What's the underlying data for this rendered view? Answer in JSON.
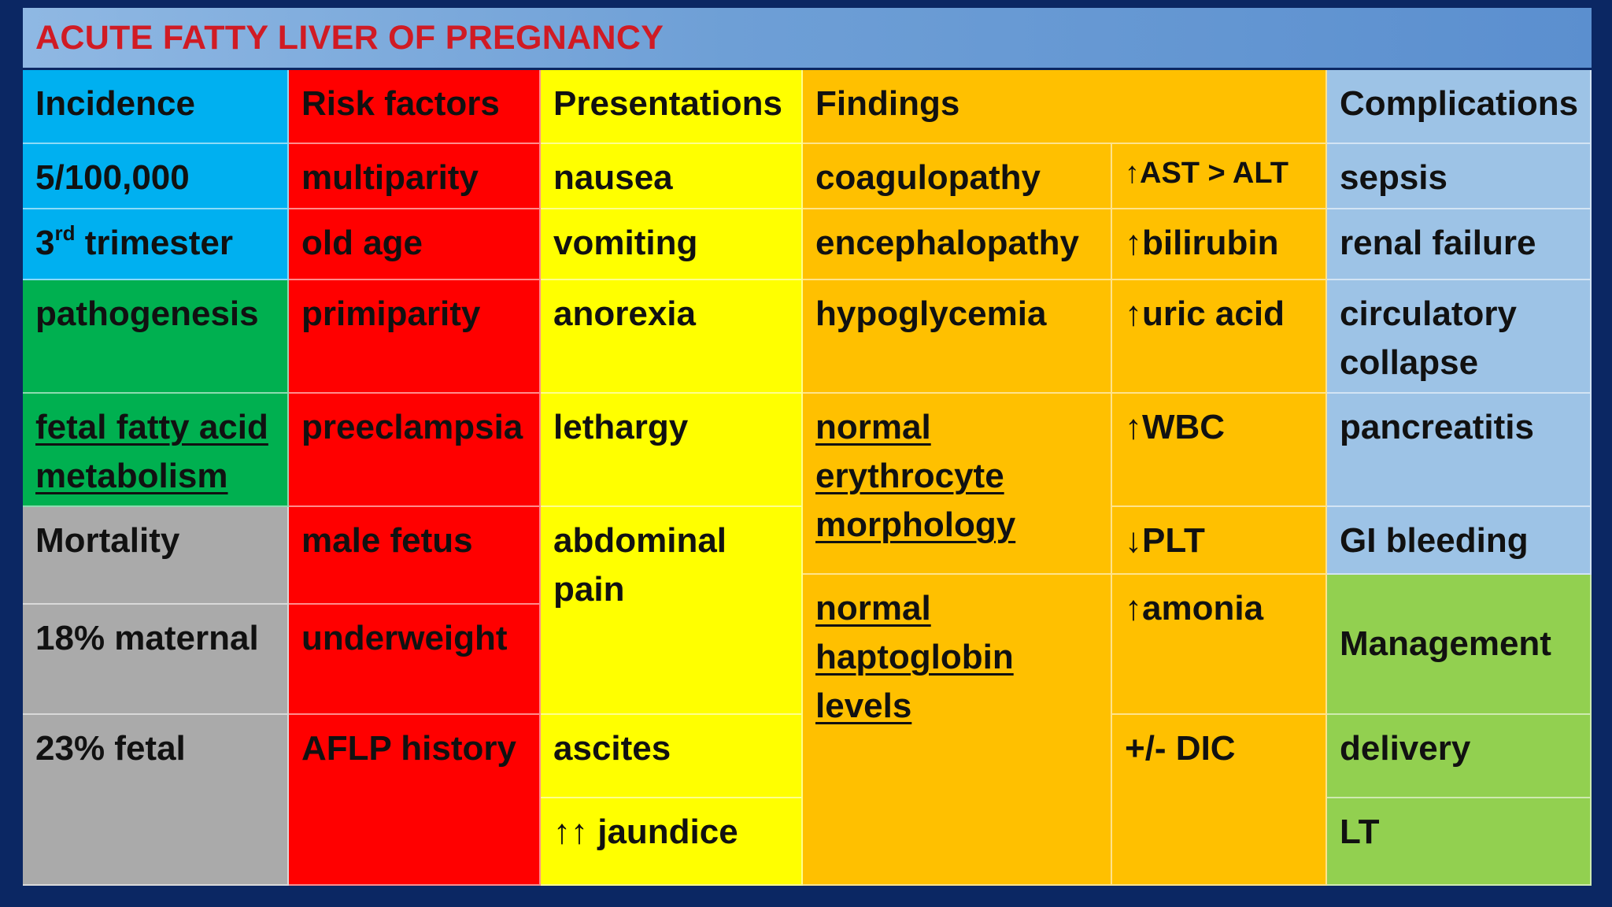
{
  "title": "ACUTE FATTY LIVER OF PREGNANCY",
  "headers": {
    "incidence": "Incidence",
    "risk_factors": "Risk factors",
    "presentations": "Presentations",
    "findings": "Findings",
    "complications": "Complications"
  },
  "incidence": {
    "rate": "5/100,000",
    "trimester_num": "3",
    "trimester_sup": "rd",
    "trimester_rest": " trimester",
    "pathogenesis": "pathogenesis",
    "pathogenesis_detail": "fetal fatty acid metabolism",
    "mortality": "Mortality",
    "maternal": "18% maternal",
    "fetal": "23% fetal"
  },
  "risk_factors": [
    "multiparity",
    "old age",
    "primiparity",
    "preeclampsia",
    "male fetus",
    "underweight",
    "AFLP history"
  ],
  "presentations": [
    "nausea",
    "vomiting",
    "anorexia",
    "lethargy",
    "abdominal pain",
    "ascites",
    "↑↑ jaundice"
  ],
  "findings_left": [
    "coagulopathy",
    "encephalopathy",
    "hypoglycemia",
    "normal erythrocyte morphology",
    "normal haptoglobin levels"
  ],
  "findings_right": [
    "↑AST > ALT",
    "↑bilirubin",
    "↑uric acid",
    "↑WBC",
    "↓PLT",
    "↑amonia",
    "+/- DIC"
  ],
  "complications": [
    "sepsis",
    "renal failure",
    "circulatory collapse",
    "pancreatitis",
    "GI bleeding"
  ],
  "management": {
    "label": "Management",
    "items": [
      "delivery",
      "LT"
    ]
  },
  "colors": {
    "title_text": "#d01b24",
    "incidence": "#00b0f0",
    "risk_factors": "#ff0000",
    "presentations": "#ffff00",
    "findings": "#ffc000",
    "complications": "#9dc3e6",
    "pathogenesis": "#00b050",
    "mortality": "#aaaaaa",
    "management": "#92d050",
    "background": "#0b2763"
  }
}
